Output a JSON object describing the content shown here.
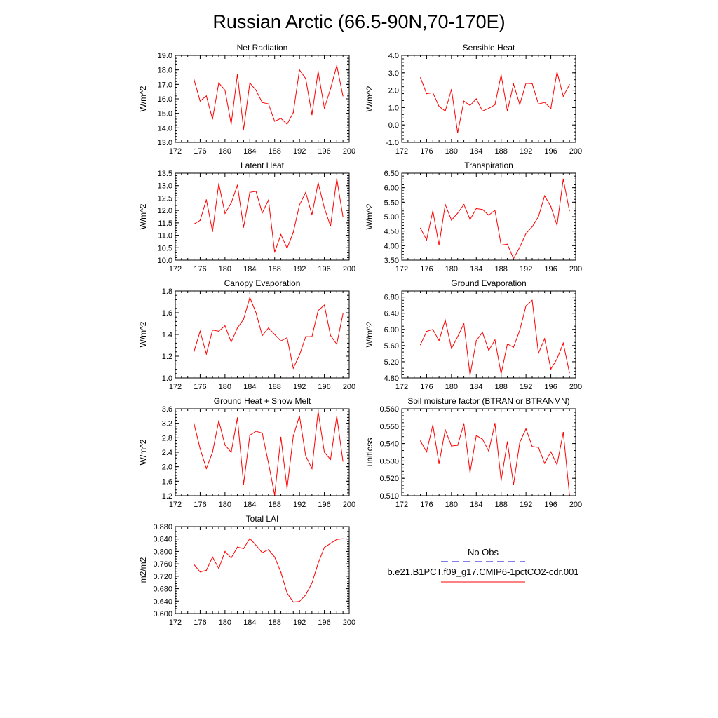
{
  "title": "Russian Arctic (66.5-90N,70-170E)",
  "legend": {
    "entries": [
      {
        "label": "No Obs",
        "color": "#0000cc",
        "dashed": true
      },
      {
        "label": "b.e21.B1PCT.f09_g17.CMIP6-1pctCO2-cdr.001",
        "color": "#ff0000",
        "dashed": false
      }
    ]
  },
  "chart_data": [
    {
      "type": "line",
      "title": "Net Radiation",
      "ylabel": "W/m^2",
      "xlim": [
        172,
        200
      ],
      "ylim": [
        13.0,
        19.0
      ],
      "xticks": [
        172,
        176,
        180,
        184,
        188,
        192,
        196,
        200
      ],
      "yticks": [
        "13.0",
        "14.0",
        "15.0",
        "16.0",
        "17.0",
        "18.0",
        "19.0"
      ],
      "series": [
        {
          "color": "#ff0000",
          "x": [
            175,
            176,
            177,
            178,
            179,
            180,
            181,
            182,
            183,
            184,
            185,
            186,
            187,
            188,
            189,
            190,
            191,
            192,
            193,
            194,
            195,
            196,
            197,
            198,
            199
          ],
          "y": [
            17.35,
            15.85,
            16.2,
            14.6,
            17.1,
            16.6,
            14.25,
            17.7,
            13.9,
            17.1,
            16.6,
            15.75,
            15.65,
            14.45,
            14.65,
            14.25,
            15.05,
            18.0,
            17.4,
            14.9,
            17.9,
            15.35,
            16.7,
            18.3,
            16.2
          ]
        }
      ]
    },
    {
      "type": "line",
      "title": "Sensible Heat",
      "ylabel": "W/m^2",
      "xlim": [
        172,
        200
      ],
      "ylim": [
        -1.0,
        4.0
      ],
      "xticks": [
        172,
        176,
        180,
        184,
        188,
        192,
        196,
        200
      ],
      "yticks": [
        "-1.0",
        "0.0",
        "1.0",
        "2.0",
        "3.0",
        "4.0"
      ],
      "series": [
        {
          "color": "#ff0000",
          "x": [
            175,
            176,
            177,
            178,
            179,
            180,
            181,
            182,
            183,
            184,
            185,
            186,
            187,
            188,
            189,
            190,
            191,
            192,
            193,
            194,
            195,
            196,
            197,
            198,
            199
          ],
          "y": [
            2.72,
            1.8,
            1.85,
            1.07,
            0.8,
            2.05,
            -0.45,
            1.37,
            1.12,
            1.5,
            0.8,
            0.95,
            1.16,
            2.88,
            0.8,
            2.35,
            1.17,
            2.4,
            2.37,
            1.2,
            1.3,
            0.95,
            3.05,
            1.65,
            2.32
          ]
        }
      ]
    },
    {
      "type": "line",
      "title": "Latent Heat",
      "ylabel": "W/m^2",
      "xlim": [
        172,
        200
      ],
      "ylim": [
        10.0,
        13.5
      ],
      "xticks": [
        172,
        176,
        180,
        184,
        188,
        192,
        196,
        200
      ],
      "yticks": [
        "10.0",
        "10.5",
        "11.0",
        "11.5",
        "12.0",
        "12.5",
        "13.0",
        "13.5"
      ],
      "series": [
        {
          "color": "#ff0000",
          "x": [
            175,
            176,
            177,
            178,
            179,
            180,
            181,
            182,
            183,
            184,
            185,
            186,
            187,
            188,
            189,
            190,
            191,
            192,
            193,
            194,
            195,
            196,
            197,
            198,
            199
          ],
          "y": [
            11.45,
            11.6,
            12.43,
            11.15,
            13.08,
            11.88,
            12.3,
            13.02,
            11.32,
            12.73,
            12.77,
            11.9,
            12.42,
            10.32,
            11.03,
            10.48,
            11.12,
            12.22,
            12.73,
            11.82,
            13.12,
            12.1,
            11.37,
            13.28,
            11.75
          ]
        }
      ]
    },
    {
      "type": "line",
      "title": "Transpiration",
      "ylabel": "W/m^2",
      "xlim": [
        172,
        200
      ],
      "ylim": [
        3.5,
        6.5
      ],
      "xticks": [
        172,
        176,
        180,
        184,
        188,
        192,
        196,
        200
      ],
      "yticks": [
        "3.50",
        "4.00",
        "4.50",
        "5.00",
        "5.50",
        "6.00",
        "6.50"
      ],
      "series": [
        {
          "color": "#ff0000",
          "x": [
            175,
            176,
            177,
            178,
            179,
            180,
            181,
            182,
            183,
            184,
            185,
            186,
            187,
            188,
            189,
            190,
            191,
            192,
            193,
            194,
            195,
            196,
            197,
            198,
            199
          ],
          "y": [
            4.6,
            4.2,
            5.2,
            4.02,
            5.42,
            4.88,
            5.12,
            5.42,
            4.9,
            5.28,
            5.25,
            5.05,
            5.22,
            4.02,
            4.05,
            3.55,
            3.95,
            4.42,
            4.65,
            5.0,
            5.72,
            5.35,
            4.7,
            6.3,
            5.2
          ]
        }
      ]
    },
    {
      "type": "line",
      "title": "Canopy Evaporation",
      "ylabel": "W/m^2",
      "xlim": [
        172,
        200
      ],
      "ylim": [
        1.0,
        1.8
      ],
      "xticks": [
        172,
        176,
        180,
        184,
        188,
        192,
        196,
        200
      ],
      "yticks": [
        "1.0",
        "1.2",
        "1.4",
        "1.6",
        "1.8"
      ],
      "series": [
        {
          "color": "#ff0000",
          "x": [
            175,
            176,
            177,
            178,
            179,
            180,
            181,
            182,
            183,
            184,
            185,
            186,
            187,
            188,
            189,
            190,
            191,
            192,
            193,
            194,
            195,
            196,
            197,
            198,
            199
          ],
          "y": [
            1.24,
            1.43,
            1.22,
            1.44,
            1.43,
            1.48,
            1.33,
            1.46,
            1.54,
            1.74,
            1.6,
            1.39,
            1.46,
            1.4,
            1.34,
            1.37,
            1.09,
            1.21,
            1.38,
            1.38,
            1.62,
            1.67,
            1.39,
            1.31,
            1.59
          ]
        }
      ]
    },
    {
      "type": "line",
      "title": "Ground Evaporation",
      "ylabel": "W/m^2",
      "xlim": [
        172,
        200
      ],
      "ylim": [
        4.8,
        6.95
      ],
      "xticks": [
        172,
        176,
        180,
        184,
        188,
        192,
        196,
        200
      ],
      "yticks": [
        "4.80",
        "5.20",
        "5.60",
        "6.00",
        "6.40",
        "6.80"
      ],
      "series": [
        {
          "color": "#ff0000",
          "x": [
            175,
            176,
            177,
            178,
            179,
            180,
            181,
            182,
            183,
            184,
            185,
            186,
            187,
            188,
            189,
            190,
            191,
            192,
            193,
            194,
            195,
            196,
            197,
            198,
            199
          ],
          "y": [
            5.62,
            5.95,
            6.0,
            5.72,
            6.23,
            5.53,
            5.82,
            6.14,
            4.87,
            5.72,
            5.93,
            5.48,
            5.74,
            4.9,
            5.64,
            5.56,
            5.98,
            6.58,
            6.72,
            5.41,
            5.77,
            5.02,
            5.27,
            5.66,
            4.93
          ]
        }
      ]
    },
    {
      "type": "line",
      "title": "Ground Heat + Snow Melt",
      "ylabel": "W/m^2",
      "xlim": [
        172,
        200
      ],
      "ylim": [
        1.2,
        3.6
      ],
      "xticks": [
        172,
        176,
        180,
        184,
        188,
        192,
        196,
        200
      ],
      "yticks": [
        "1.2",
        "1.6",
        "2.0",
        "2.4",
        "2.8",
        "3.2",
        "3.6"
      ],
      "series": [
        {
          "color": "#ff0000",
          "x": [
            175,
            176,
            177,
            178,
            179,
            180,
            181,
            182,
            183,
            184,
            185,
            186,
            187,
            188,
            189,
            190,
            191,
            192,
            193,
            194,
            195,
            196,
            197,
            198,
            199
          ],
          "y": [
            3.2,
            2.5,
            1.95,
            2.4,
            3.27,
            2.6,
            2.4,
            3.35,
            1.52,
            2.87,
            2.98,
            2.93,
            2.1,
            1.22,
            2.82,
            1.4,
            2.85,
            3.4,
            2.3,
            1.95,
            3.53,
            2.4,
            2.2,
            3.4,
            2.15
          ]
        }
      ]
    },
    {
      "type": "line",
      "title": "Soil moisture factor (BTRAN or BTRANMN)",
      "ylabel": "unitless",
      "xlim": [
        172,
        200
      ],
      "ylim": [
        0.51,
        0.56
      ],
      "xticks": [
        172,
        176,
        180,
        184,
        188,
        192,
        196,
        200
      ],
      "yticks": [
        "0.510",
        "0.520",
        "0.530",
        "0.540",
        "0.550",
        "0.560"
      ],
      "series": [
        {
          "color": "#ff0000",
          "x": [
            175,
            176,
            177,
            178,
            179,
            180,
            181,
            182,
            183,
            184,
            185,
            186,
            187,
            188,
            189,
            190,
            191,
            192,
            193,
            194,
            195,
            196,
            197,
            198,
            199
          ],
          "y": [
            0.5415,
            0.5352,
            0.5507,
            0.5284,
            0.5479,
            0.5386,
            0.539,
            0.5515,
            0.5234,
            0.5447,
            0.5425,
            0.5357,
            0.5516,
            0.5187,
            0.541,
            0.5164,
            0.5407,
            0.5485,
            0.5383,
            0.5378,
            0.5286,
            0.5353,
            0.5278,
            0.5465,
            0.5106
          ]
        }
      ]
    },
    {
      "type": "line",
      "title": "Total LAI",
      "ylabel": "m2/m2",
      "xlim": [
        172,
        200
      ],
      "ylim": [
        0.6,
        0.88
      ],
      "xticks": [
        172,
        176,
        180,
        184,
        188,
        192,
        196,
        200
      ],
      "yticks": [
        "0.600",
        "0.640",
        "0.680",
        "0.720",
        "0.760",
        "0.800",
        "0.840",
        "0.880"
      ],
      "series": [
        {
          "color": "#ff0000",
          "x": [
            175,
            176,
            177,
            178,
            179,
            180,
            181,
            182,
            183,
            184,
            185,
            186,
            187,
            188,
            189,
            190,
            191,
            192,
            193,
            194,
            195,
            196,
            197,
            198,
            199
          ],
          "y": [
            0.758,
            0.734,
            0.739,
            0.782,
            0.745,
            0.8,
            0.779,
            0.814,
            0.809,
            0.842,
            0.82,
            0.796,
            0.806,
            0.782,
            0.733,
            0.666,
            0.637,
            0.639,
            0.66,
            0.698,
            0.762,
            0.813,
            0.826,
            0.839,
            0.841
          ]
        }
      ]
    }
  ]
}
